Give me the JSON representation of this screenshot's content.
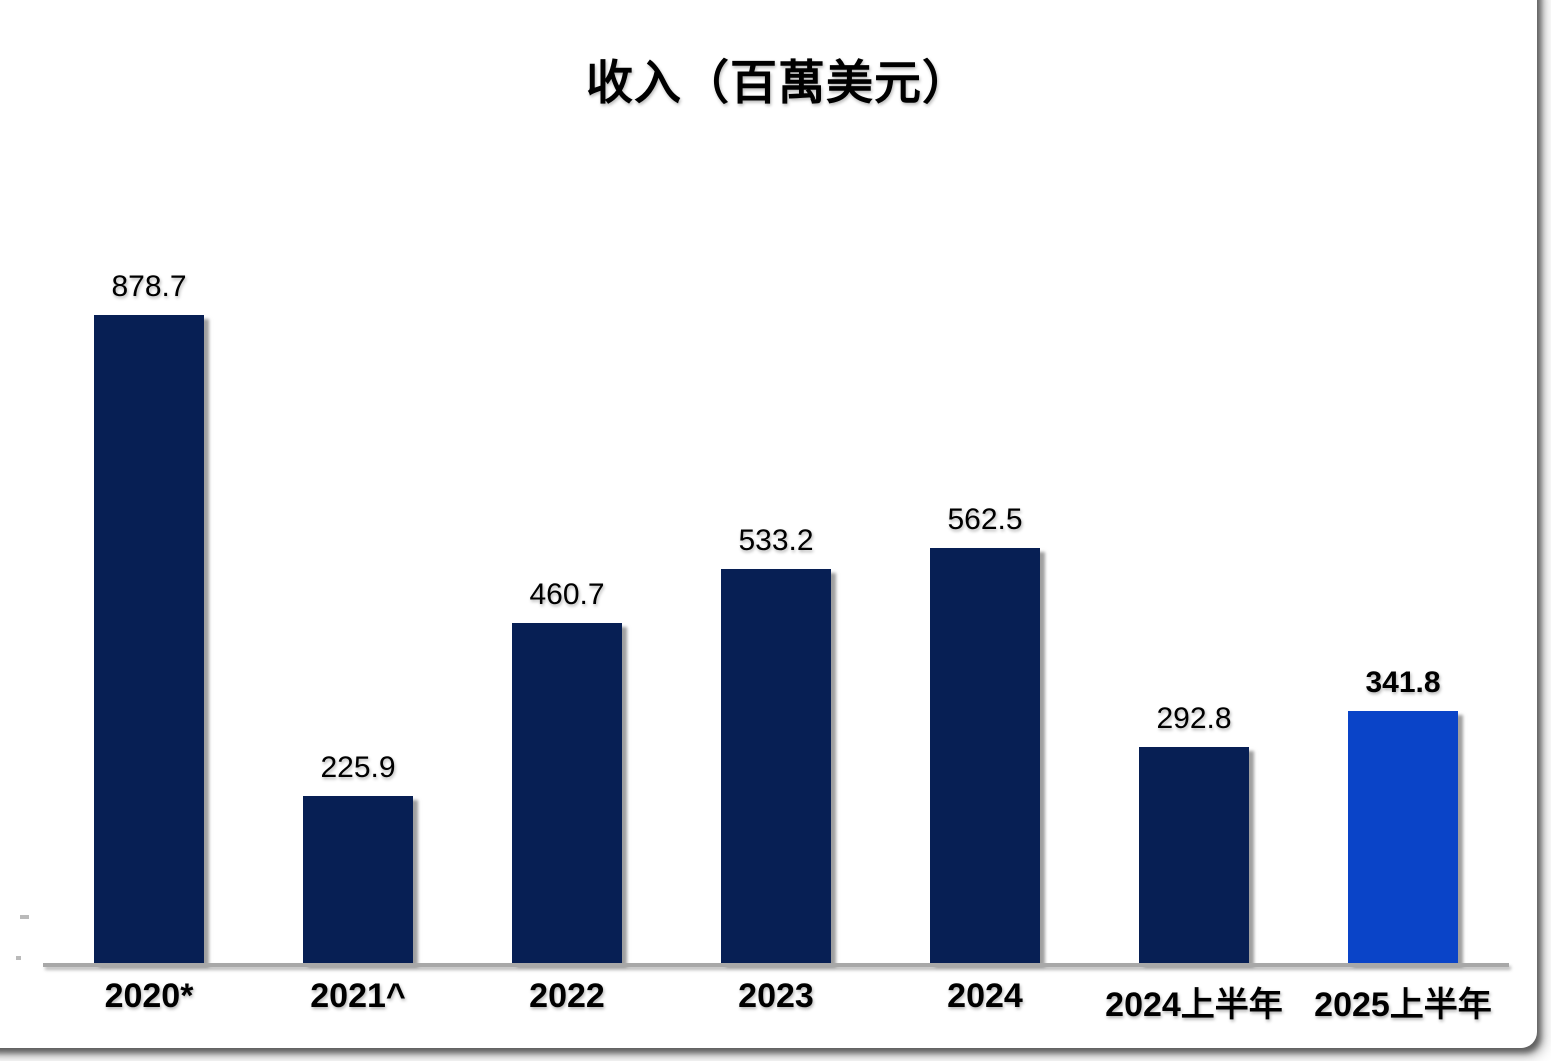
{
  "chart_data": {
    "type": "bar",
    "title": "收入（百萬美元）",
    "categories": [
      "2020*",
      "2021^",
      "2022",
      "2023",
      "2024",
      "2024上半年",
      "2025上半年"
    ],
    "values": [
      878.7,
      225.9,
      460.7,
      533.2,
      562.5,
      292.8,
      341.8
    ],
    "data_labels": [
      "878.7",
      "225.9",
      "460.7",
      "533.2",
      "562.5",
      "292.8",
      "341.8"
    ],
    "xlabel": "",
    "ylabel": "",
    "y_axis_visible": false,
    "grid": false,
    "legend": "none",
    "data_label_position": "above-bar",
    "bar_color": "#071f54",
    "highlight_bar_color": "#0a44c8",
    "highlight_index": 6,
    "axis_line_color": "#a8a8a8",
    "text_color": "#000000",
    "background_color": "#ffffff"
  }
}
